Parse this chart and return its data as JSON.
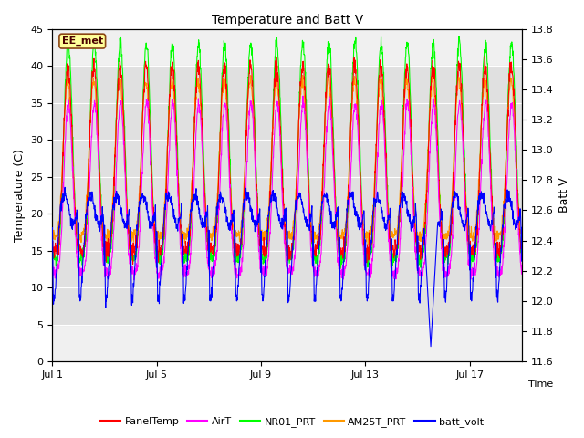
{
  "title": "Temperature and Batt V",
  "xlabel": "Time",
  "ylabel_left": "Temperature (C)",
  "ylabel_right": "Batt V",
  "xlim_days": [
    0,
    18
  ],
  "ylim_left": [
    0,
    45
  ],
  "ylim_right": [
    11.6,
    13.8
  ],
  "xtick_labels": [
    "Jul 1",
    "Jul 5",
    "Jul 9",
    "Jul 13",
    "Jul 17"
  ],
  "xtick_positions": [
    0,
    4,
    8,
    12,
    16
  ],
  "yticks_left": [
    0,
    5,
    10,
    15,
    20,
    25,
    30,
    35,
    40,
    45
  ],
  "yticks_right": [
    11.6,
    11.8,
    12.0,
    12.2,
    12.4,
    12.6,
    12.8,
    13.0,
    13.2,
    13.4,
    13.6,
    13.8
  ],
  "shaded_ymin": 5,
  "shaded_ymax": 40,
  "colors": {
    "PanelTemp": "#ff0000",
    "AirT": "#ff00ff",
    "NR01_PRT": "#00ff00",
    "AM25T_PRT": "#ff9900",
    "batt_volt": "#0000ff"
  },
  "annotation_text": "EE_met",
  "annotation_box_color": "#ffff99",
  "annotation_border_color": "#8b4513",
  "background_color": "#ffffff",
  "plot_bg_color": "#f0f0f0",
  "shaded_color": "#e0e0e0",
  "grid_color": "#ffffff",
  "seed": 42,
  "n_days": 18,
  "pts_per_day": 96
}
